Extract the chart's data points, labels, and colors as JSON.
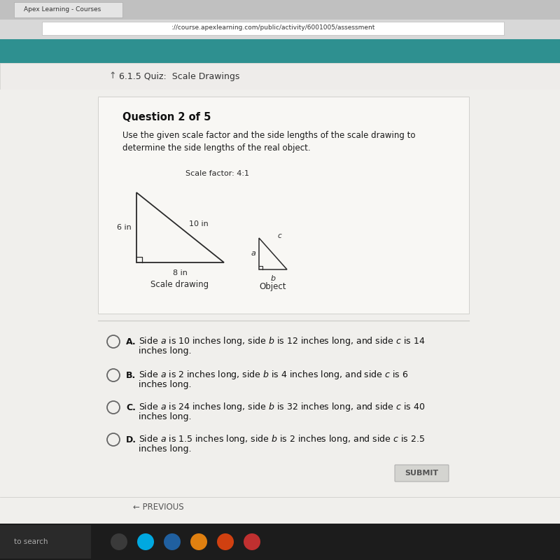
{
  "browser_bg": "#c8c8c8",
  "tab_bg": "#e8e8e8",
  "tab_text": "Apex Learning - Courses",
  "nav_bg": "#2e9090",
  "nav_text": "://course.apexlearning.com/public/activity/6001005/assessment",
  "content_bg": "#f0efec",
  "header_bg": "#eeecea",
  "header_text": "6.1.5 Quiz:  Scale Drawings",
  "question_box_bg": "#f8f7f4",
  "question_number": "Question 2 of 5",
  "q_line1": "Use the given scale factor and the side lengths of the scale drawing to",
  "q_line2": "determine the side lengths of the real object.",
  "scale_factor": "Scale factor: 4:1",
  "large_tri_left": "6 in",
  "large_tri_bottom": "8 in",
  "large_tri_hyp": "10 in",
  "large_tri_label": "Scale drawing",
  "small_tri_left": "a",
  "small_tri_bottom": "b",
  "small_tri_hyp": "c",
  "small_tri_label": "Object",
  "answer_lines": [
    [
      "A.",
      "Side ",
      "a",
      " is 10 inches long, side ",
      "b",
      " is 12 inches long, and side ",
      "c",
      " is 14",
      "inches long."
    ],
    [
      "B.",
      "Side ",
      "a",
      " is 2 inches long, side ",
      "b",
      " is 4 inches long, and side ",
      "c",
      " is 6",
      "inches long."
    ],
    [
      "C.",
      "Side ",
      "a",
      " is 24 inches long, side ",
      "b",
      " is 32 inches long, and side ",
      "c",
      " is 40",
      "inches long."
    ],
    [
      "D.",
      "Side ",
      "a",
      " is 1.5 inches long, side ",
      "b",
      " is 2 inches long, and side ",
      "c",
      " is 2.5",
      "inches long."
    ]
  ],
  "submit_text": "SUBMIT",
  "prev_text": "← PREVIOUS",
  "search_text": "to search",
  "taskbar_bg": "#1e1e1e",
  "taskbar_icons_bg": "#2b2b2b"
}
